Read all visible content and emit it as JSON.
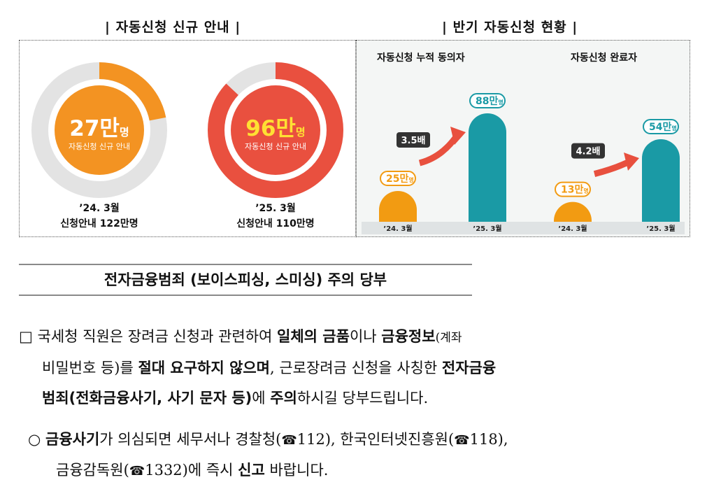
{
  "left_section": {
    "title": "자동신청 신규 안내",
    "bar": "|",
    "donut1": {
      "value": "27만",
      "unit": "명",
      "sub": "자동신청 신규 안내",
      "caption1": "’24. 3월",
      "caption2": "신청안내 122만명",
      "fraction": 0.22,
      "color": "#f39322",
      "track": "#e3e3e3"
    },
    "donut2": {
      "value": "96만",
      "unit": "명",
      "sub": "자동신청 신규 안내",
      "caption1": "’25. 3월",
      "caption2": "신청안내 110만명",
      "fraction": 0.87,
      "color": "#e9503f",
      "track": "#e3e3e3"
    }
  },
  "right_section": {
    "title": "반기 자동신청 현황",
    "bar": "|"
  },
  "chart_data": [
    {
      "type": "bar",
      "title": "자동신청 누적 동의자",
      "categories": [
        "’24. 3월",
        "’25. 3월"
      ],
      "values": [
        25,
        88
      ],
      "labels": [
        "25만",
        "88만"
      ],
      "unit": "명",
      "colors": [
        "#f29b12",
        "#1a9aa5"
      ],
      "annotation": "3.5배",
      "ylim": [
        0,
        100
      ]
    },
    {
      "type": "bar",
      "title": "자동신청 완료자",
      "categories": [
        "’24. 3월",
        "’25. 3월"
      ],
      "values": [
        13,
        54
      ],
      "labels": [
        "13만",
        "54만"
      ],
      "unit": "명",
      "colors": [
        "#f29b12",
        "#1a9aa5"
      ],
      "annotation": "4.2배",
      "ylim": [
        0,
        60
      ]
    }
  ],
  "warning": {
    "title": "전자금융범죄 (보이스피싱, 스미싱) 주의 당부",
    "p1": {
      "bullet": "□",
      "t1": "국세청 직원은 장려금 신청과 관련하여 ",
      "b1": "일체의 금품",
      "t2": "이나 ",
      "b2": "금융정보",
      "t3": "(계좌",
      "t4": "비밀번호 등)를 ",
      "b3": "절대 요구하지 않으며",
      "t5": ", 근로장려금 신청을 사칭한 ",
      "b4": "전자금융",
      "b5": "범죄(전화금융사기, 사기 문자 등)",
      "t6": "에 ",
      "b6": "주의",
      "t7": "하시길 당부드립니다."
    },
    "p2": {
      "bullet": "○",
      "b1": "금융사기",
      "t1": "가 의심되면 세무서나 경찰청(",
      "phone": "☎",
      "n1": "112), 한국인터넷진흥원(",
      "n2": "118),",
      "t2": "금융감독원(",
      "n3": "1332)에 즉시 ",
      "b2": "신고",
      "t3": " 바랍니다."
    }
  }
}
